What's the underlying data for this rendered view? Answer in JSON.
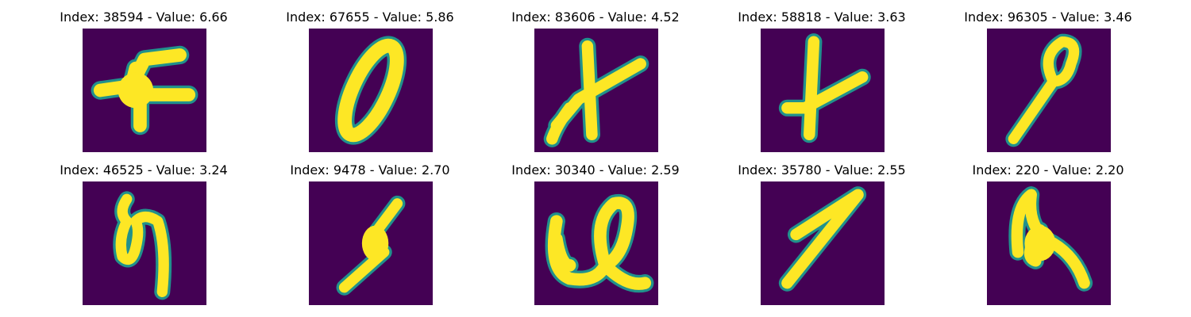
{
  "colors": {
    "background": "#440154",
    "foreground": "#fde725",
    "edge": "#21918c",
    "page": "#ffffff",
    "title_text": "#000000"
  },
  "panels": [
    {
      "title": "Index: 38594 - Value: 6.66",
      "glyph": "flag-like blob"
    },
    {
      "title": "Index: 67655 - Value: 5.86",
      "glyph": "slanted zero"
    },
    {
      "title": "Index: 83606 - Value: 4.52",
      "glyph": "crossed strokes"
    },
    {
      "title": "Index: 58818 - Value: 3.63",
      "glyph": "plus-like cross"
    },
    {
      "title": "Index: 96305 - Value: 3.46",
      "glyph": "loop with tail"
    },
    {
      "title": "Index: 46525 - Value: 3.24",
      "glyph": "looped script"
    },
    {
      "title": "Index: 9478 - Value: 2.70",
      "glyph": "slanted stroke with blob"
    },
    {
      "title": "Index: 30340 - Value: 2.59",
      "glyph": "wide looped script"
    },
    {
      "title": "Index: 35780 - Value: 2.55",
      "glyph": "slanted seven"
    },
    {
      "title": "Index: 220 - Value: 2.20",
      "glyph": "hooked stroke"
    }
  ]
}
